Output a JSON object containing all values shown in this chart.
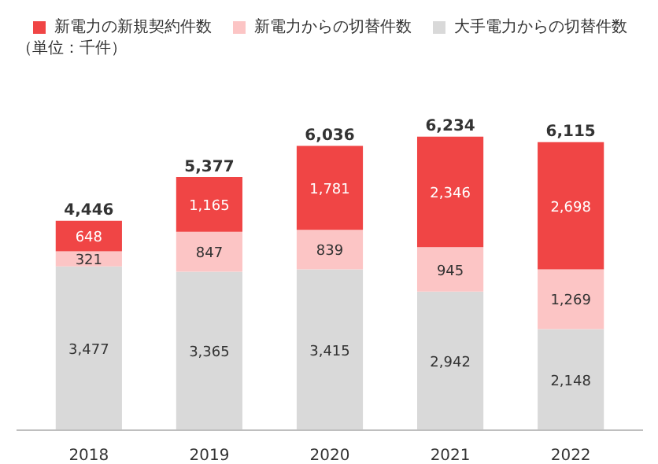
{
  "chart_data": {
    "type": "bar",
    "stacked": true,
    "categories": [
      "2018",
      "2019",
      "2020",
      "2021",
      "2022"
    ],
    "annotations": [
      "（単位：千件）"
    ],
    "series": [
      {
        "name": "大手電力からの切替件数",
        "color": "#d9d9d9",
        "values": [
          3477,
          3365,
          3415,
          2942,
          2148
        ],
        "value_labels": [
          "3,477",
          "3,365",
          "3,415",
          "2,942",
          "2,148"
        ]
      },
      {
        "name": "新電力からの切替件数",
        "color": "#fcc5c5",
        "values": [
          321,
          847,
          839,
          945,
          1269
        ],
        "value_labels": [
          "321",
          "847",
          "839",
          "945",
          "1,269"
        ]
      },
      {
        "name": "新電力の新規契約件数",
        "color": "#f04545",
        "values": [
          648,
          1165,
          1781,
          2346,
          2698
        ],
        "value_labels": [
          "648",
          "1,165",
          "1,781",
          "2,346",
          "2,698"
        ]
      }
    ],
    "totals": [
      "4,446",
      "5,377",
      "6,036",
      "6,234",
      "6,115"
    ],
    "legend": "top",
    "grid": false
  }
}
